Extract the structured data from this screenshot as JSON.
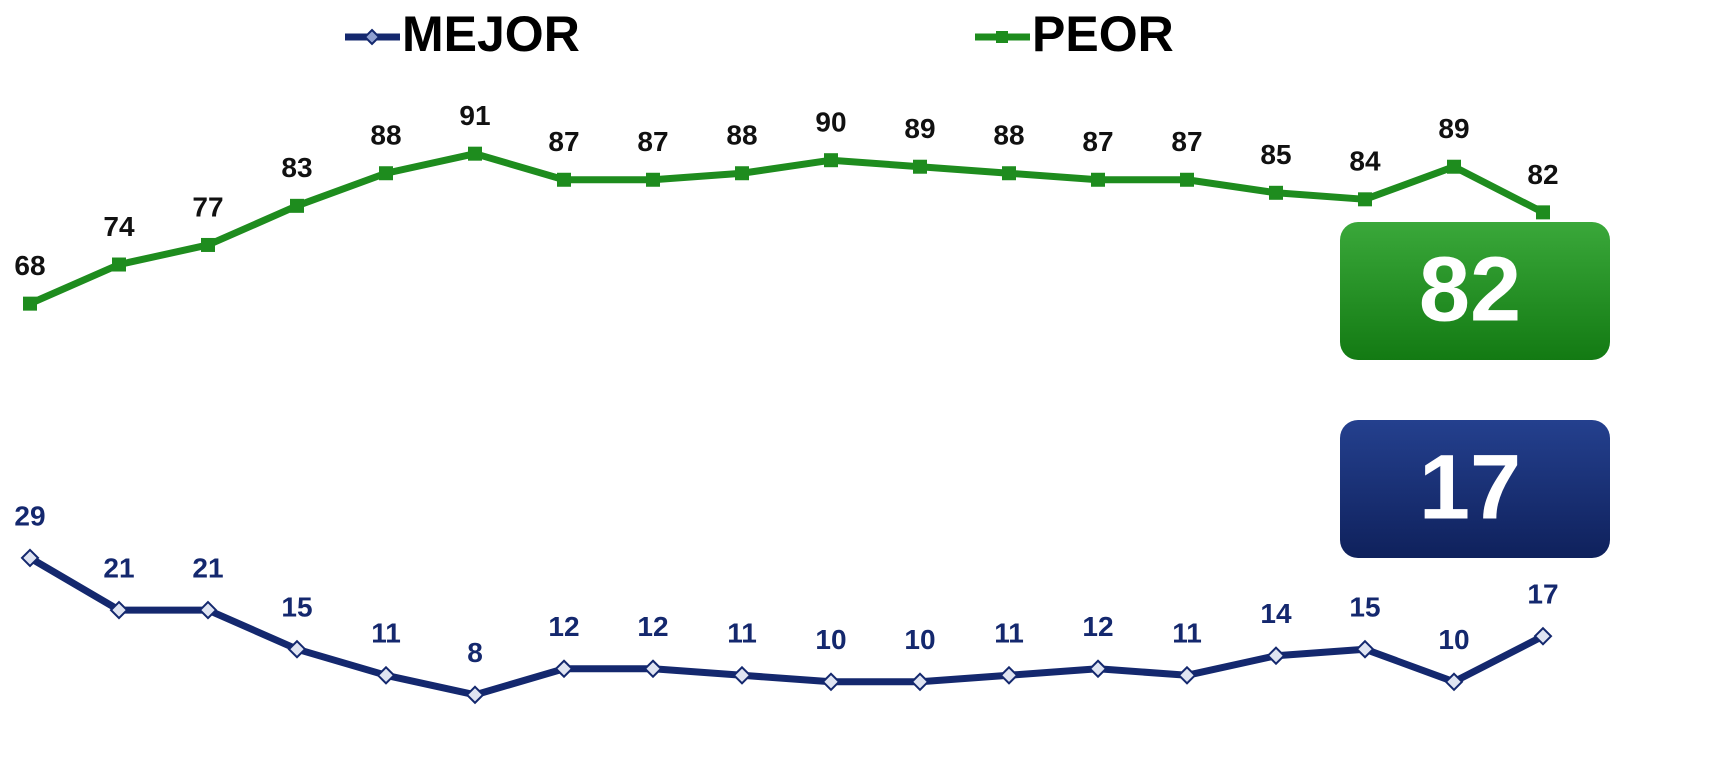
{
  "chart_data": {
    "type": "line",
    "series": [
      {
        "name": "MEJOR",
        "color": "#14286e",
        "marker": "diamond",
        "values": [
          29,
          21,
          21,
          15,
          11,
          8,
          12,
          12,
          11,
          10,
          10,
          11,
          12,
          11,
          14,
          15,
          10,
          17
        ]
      },
      {
        "name": "PEOR",
        "color": "#1e8c1e",
        "marker": "square",
        "values": [
          68,
          74,
          77,
          83,
          88,
          91,
          87,
          87,
          88,
          90,
          89,
          88,
          87,
          87,
          85,
          84,
          89,
          82
        ]
      }
    ],
    "callouts": [
      82,
      17
    ],
    "ylim": [
      0,
      100
    ]
  }
}
